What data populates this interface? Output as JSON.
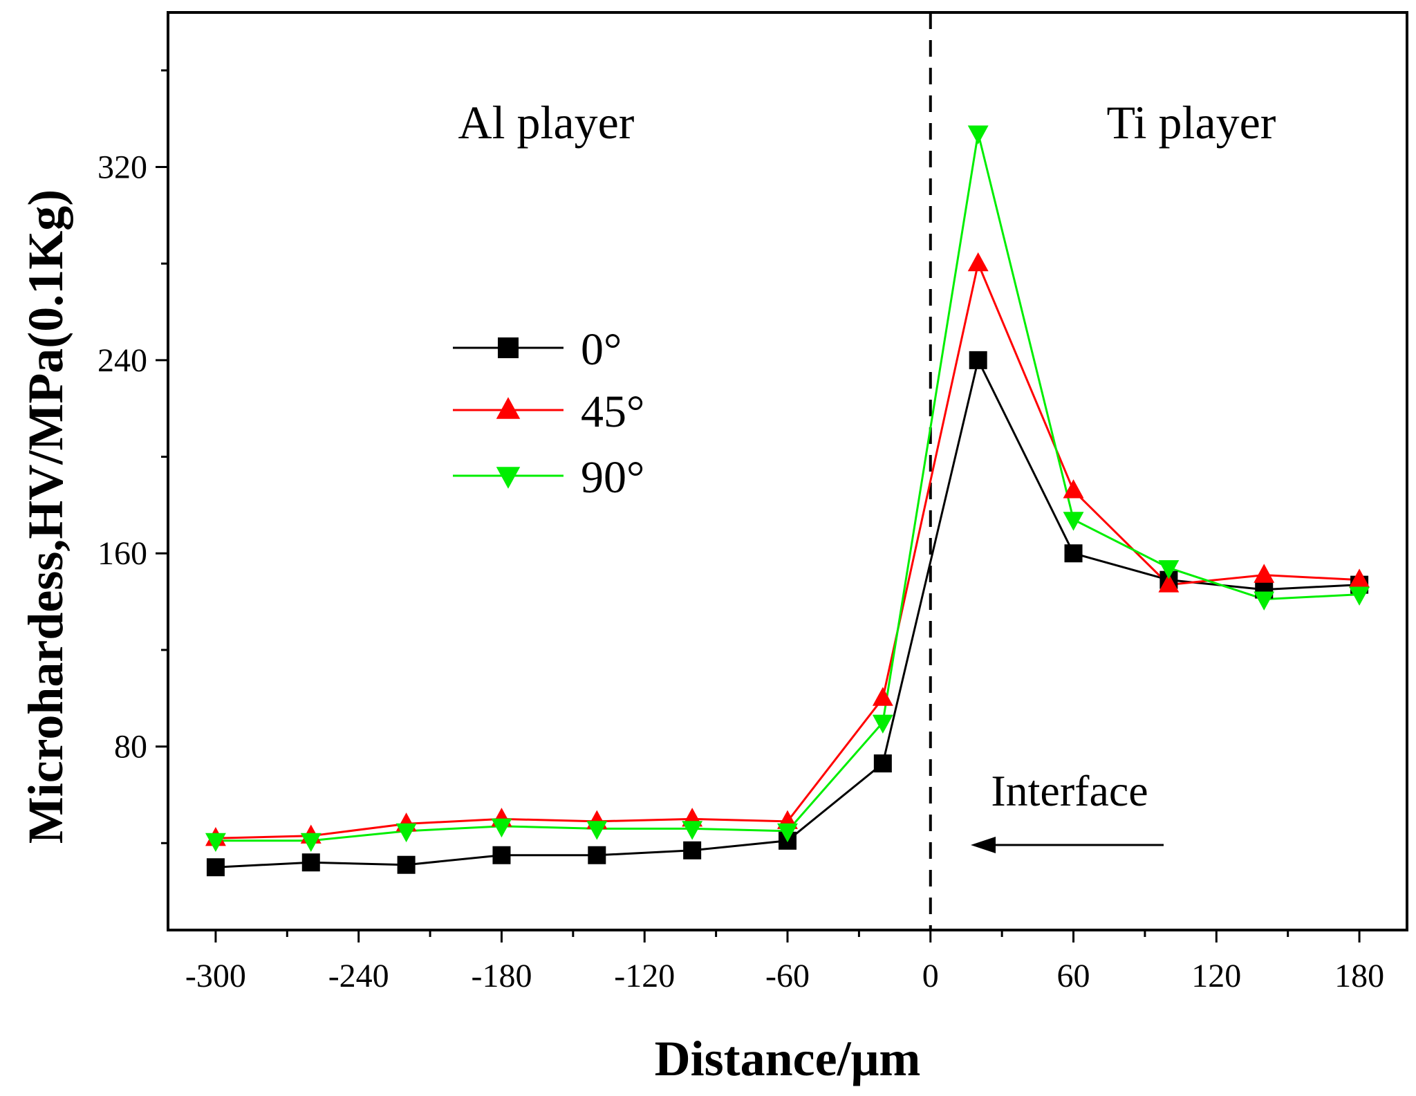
{
  "chart_data": {
    "type": "line",
    "title": "",
    "xlabel": "Distance/μm",
    "ylabel": "Microhardess,HV/MPa(0.1Kg)",
    "xlim": [
      -320,
      200
    ],
    "ylim": [
      4,
      384
    ],
    "xticks": [
      -300,
      -240,
      -180,
      -120,
      -60,
      0,
      60,
      120,
      180
    ],
    "xtick_labels": [
      "-300",
      "-240",
      "-180",
      "-120",
      "-60",
      "0",
      "60",
      "120",
      "180"
    ],
    "yticks": [
      80,
      160,
      240,
      320
    ],
    "ytick_labels": [
      "80",
      "160",
      "240",
      "320"
    ],
    "interface_x": 0,
    "grid": false,
    "legend_position": "center-left",
    "region_labels": {
      "left": "Al player",
      "right": "Ti player"
    },
    "annotation": "Interface",
    "series": [
      {
        "name": "0°",
        "color": "#000000",
        "marker": "square",
        "x": [
          -300,
          -260,
          -220,
          -180,
          -140,
          -100,
          -60,
          -20,
          20,
          60,
          100,
          140,
          180
        ],
        "y": [
          30,
          32,
          31,
          35,
          35,
          37,
          41,
          73,
          240,
          160,
          149,
          145,
          147
        ]
      },
      {
        "name": "45°",
        "color": "#ff0000",
        "marker": "triangle-up",
        "x": [
          -300,
          -260,
          -220,
          -180,
          -140,
          -100,
          -60,
          -20,
          20,
          60,
          100,
          140,
          180
        ],
        "y": [
          42,
          43,
          48,
          50,
          49,
          50,
          49,
          100,
          280,
          186,
          147,
          151,
          149
        ]
      },
      {
        "name": "90°",
        "color": "#00ee00",
        "marker": "triangle-down",
        "x": [
          -300,
          -260,
          -220,
          -180,
          -140,
          -100,
          -60,
          -20,
          20,
          60,
          100,
          140,
          180
        ],
        "y": [
          41,
          41,
          45,
          47,
          46,
          46,
          45,
          90,
          334,
          174,
          154,
          141,
          143
        ]
      }
    ]
  }
}
